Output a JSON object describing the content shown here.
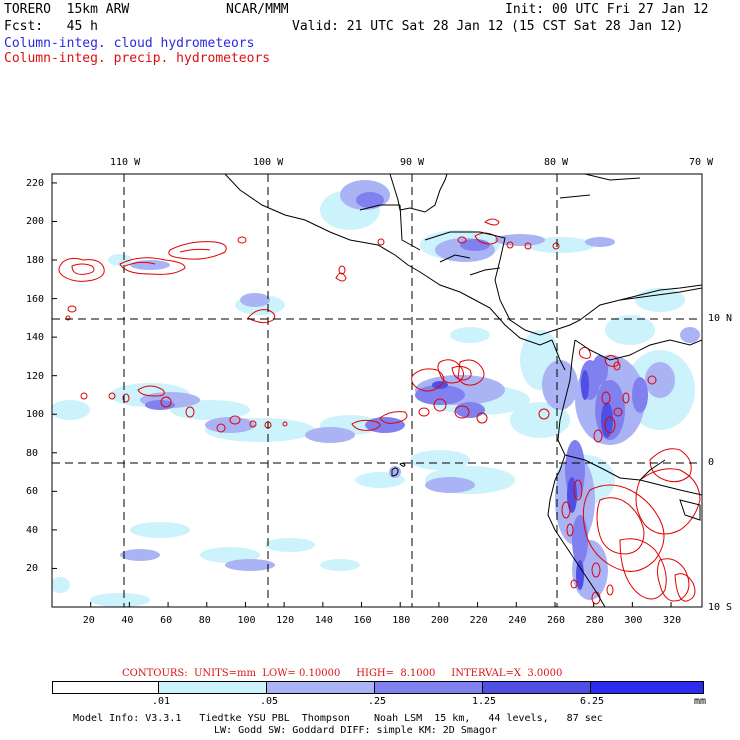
{
  "header": {
    "model": "TORERO  15km ARW",
    "center": "NCAR/MMM",
    "init": "Init: 00 UTC Fri 27 Jan 12",
    "fcst": "Fcst:   45 h",
    "valid": "Valid: 21 UTC Sat 28 Jan 12 (15 CST Sat 28 Jan 12)",
    "field1": "Column-integ. cloud hydrometeors",
    "field2": "Column-integ. precip. hydrometeors"
  },
  "colors": {
    "cloud_text": "#2a2ae0",
    "precip_text": "#dd1010",
    "contour": "#e00000",
    "shade_1": "#ccf2fb",
    "shade_2": "#aab4f4",
    "shade_3": "#8080ee",
    "shade_4": "#4f4fe6",
    "shade_5": "#2c2cf0"
  },
  "map": {
    "top_lon_labels": [
      "110 W",
      "100 W",
      "90 W",
      "80 W",
      "70 W"
    ],
    "right_lat_labels": [
      "10 N",
      "0",
      "10 S"
    ],
    "left_y_ticks": [
      "220",
      "200",
      "180",
      "160",
      "140",
      "120",
      "100",
      "80",
      "60",
      "40",
      "20"
    ],
    "bottom_x_ticks": [
      "20",
      "40",
      "60",
      "80",
      "100",
      "120",
      "140",
      "160",
      "180",
      "200",
      "220",
      "240",
      "260",
      "280",
      "300",
      "320"
    ]
  },
  "contour_info": "CONTOURS:  UNITS=mm  LOW= 0.10000     HIGH=  8.1000     INTERVAL=X  3.0000",
  "colorbar": {
    "labels": [
      ".01",
      ".05",
      ".25",
      "1.25",
      "6.25"
    ],
    "unit": "mm"
  },
  "footer": {
    "line1": "Model Info: V3.3.1   Tiedtke YSU PBL  Thompson    Noah LSM  15 km,   44 levels,   87 sec",
    "line2": "LW: Godd SW: Goddard DIFF: simple KM: 2D Smagor"
  }
}
